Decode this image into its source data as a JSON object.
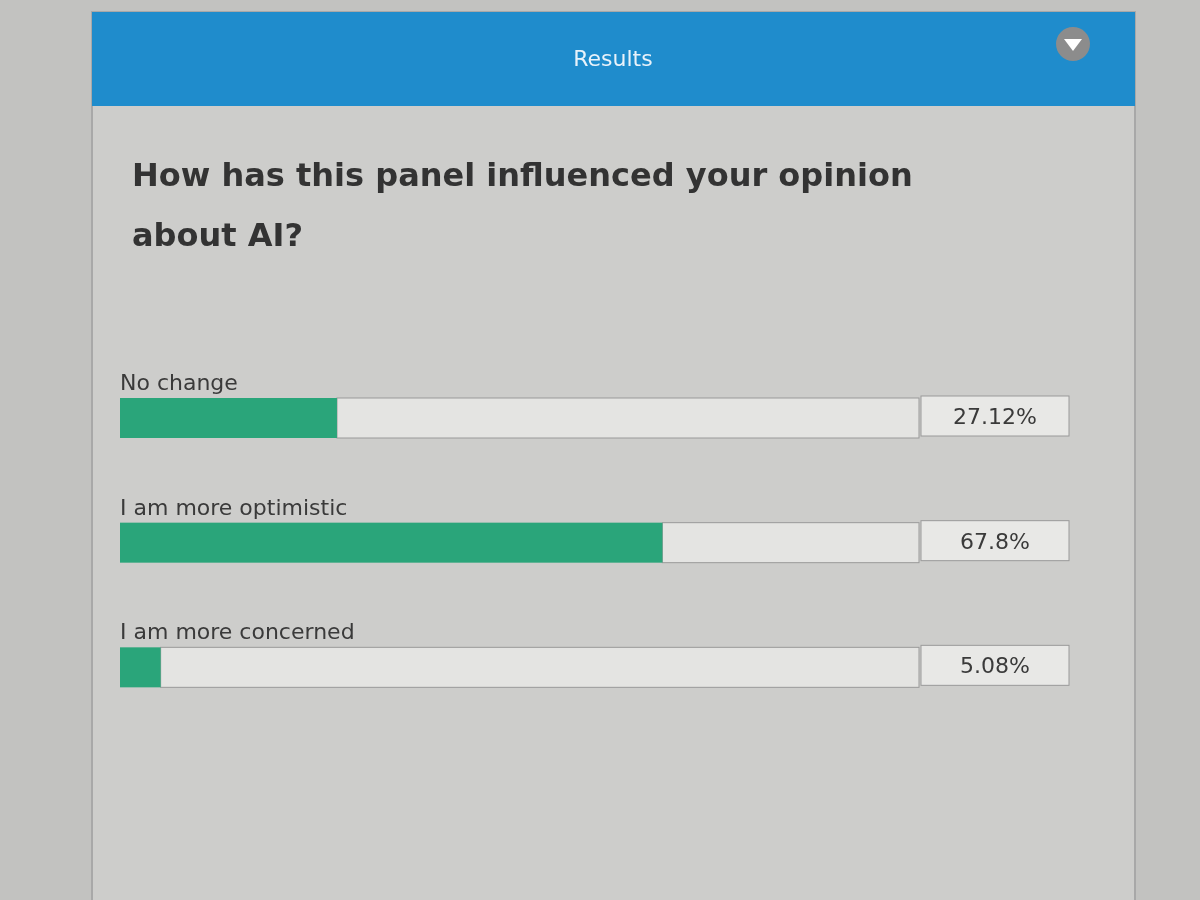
{
  "chart_data": {
    "type": "bar",
    "orientation": "horizontal",
    "title": "Results",
    "subtitle": "How has this panel influenced your opinion about AI?",
    "categories": [
      "No change",
      "I am more optimistic",
      "I am more concerned"
    ],
    "values": [
      27.12,
      67.8,
      5.08
    ],
    "value_labels": [
      "27.12%",
      "67.8%",
      "5.08%"
    ],
    "color": "#2aa57a",
    "xlim": [
      0,
      100
    ]
  }
}
